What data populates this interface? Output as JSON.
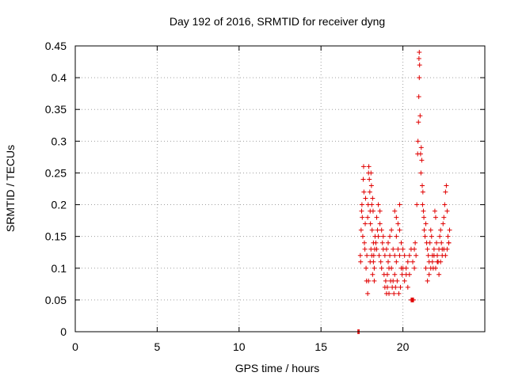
{
  "chart_data": {
    "type": "scatter",
    "title": "Day 192 of 2016, SRMTID for receiver dyng",
    "xlabel": "GPS time / hours",
    "ylabel": "SRMTID / TECUs",
    "xlim": [
      0,
      25
    ],
    "ylim": [
      0,
      0.45
    ],
    "xticks": [
      0,
      5,
      10,
      15,
      20
    ],
    "xtick_labels": [
      "0",
      "5",
      "10",
      "15",
      "20"
    ],
    "yticks": [
      0,
      0.05,
      0.1,
      0.15,
      0.2,
      0.25,
      0.3,
      0.35,
      0.4,
      0.45
    ],
    "ytick_labels": [
      "0",
      "0.05",
      "0.1",
      "0.15",
      "0.2",
      "0.25",
      "0.3",
      "0.35",
      "0.4",
      "0.45"
    ],
    "grid": true,
    "marker": "plus",
    "color": "#e00000",
    "series": [
      {
        "name": "SRMTID",
        "points": [
          [
            17.25,
            0.0
          ],
          [
            17.3,
            0.0
          ],
          [
            17.33,
            0.0
          ],
          [
            17.4,
            0.12
          ],
          [
            17.42,
            0.11
          ],
          [
            17.45,
            0.16
          ],
          [
            17.48,
            0.19
          ],
          [
            17.5,
            0.2
          ],
          [
            17.52,
            0.18
          ],
          [
            17.55,
            0.15
          ],
          [
            17.58,
            0.24
          ],
          [
            17.6,
            0.26
          ],
          [
            17.62,
            0.22
          ],
          [
            17.65,
            0.14
          ],
          [
            17.68,
            0.13
          ],
          [
            17.7,
            0.17
          ],
          [
            17.72,
            0.21
          ],
          [
            17.75,
            0.1
          ],
          [
            17.78,
            0.08
          ],
          [
            17.8,
            0.12
          ],
          [
            17.85,
            0.18
          ],
          [
            17.88,
            0.2
          ],
          [
            17.9,
            0.25
          ],
          [
            17.92,
            0.26
          ],
          [
            17.95,
            0.24
          ],
          [
            17.98,
            0.22
          ],
          [
            18.0,
            0.19
          ],
          [
            18.02,
            0.17
          ],
          [
            18.05,
            0.25
          ],
          [
            18.08,
            0.23
          ],
          [
            18.1,
            0.2
          ],
          [
            18.12,
            0.16
          ],
          [
            18.15,
            0.21
          ],
          [
            18.18,
            0.19
          ],
          [
            18.2,
            0.14
          ],
          [
            18.22,
            0.12
          ],
          [
            18.25,
            0.1
          ],
          [
            18.28,
            0.13
          ],
          [
            18.3,
            0.15
          ],
          [
            17.85,
            0.06
          ],
          [
            17.9,
            0.08
          ],
          [
            18.0,
            0.11
          ],
          [
            18.05,
            0.13
          ],
          [
            18.1,
            0.12
          ],
          [
            18.15,
            0.09
          ],
          [
            18.2,
            0.11
          ],
          [
            18.25,
            0.08
          ],
          [
            18.35,
            0.14
          ],
          [
            18.4,
            0.13
          ],
          [
            18.45,
            0.16
          ],
          [
            18.5,
            0.15
          ],
          [
            18.55,
            0.12
          ],
          [
            18.6,
            0.17
          ],
          [
            18.65,
            0.11
          ],
          [
            18.7,
            0.1
          ],
          [
            18.75,
            0.14
          ],
          [
            18.8,
            0.13
          ],
          [
            18.85,
            0.09
          ],
          [
            18.9,
            0.07
          ],
          [
            18.95,
            0.08
          ],
          [
            19.0,
            0.06
          ],
          [
            19.05,
            0.09
          ],
          [
            19.1,
            0.11
          ],
          [
            19.15,
            0.1
          ],
          [
            18.4,
            0.18
          ],
          [
            18.5,
            0.2
          ],
          [
            18.6,
            0.19
          ],
          [
            18.7,
            0.16
          ],
          [
            18.8,
            0.15
          ],
          [
            18.9,
            0.12
          ],
          [
            19.0,
            0.13
          ],
          [
            19.1,
            0.14
          ],
          [
            19.2,
            0.12
          ],
          [
            19.3,
            0.1
          ],
          [
            19.4,
            0.08
          ],
          [
            19.5,
            0.09
          ],
          [
            19.6,
            0.11
          ],
          [
            19.7,
            0.13
          ],
          [
            19.8,
            0.12
          ],
          [
            19.9,
            0.1
          ],
          [
            19.05,
            0.07
          ],
          [
            19.15,
            0.06
          ],
          [
            19.25,
            0.08
          ],
          [
            19.35,
            0.07
          ],
          [
            19.45,
            0.06
          ],
          [
            19.55,
            0.07
          ],
          [
            19.65,
            0.08
          ],
          [
            19.75,
            0.06
          ],
          [
            19.85,
            0.07
          ],
          [
            19.95,
            0.09
          ],
          [
            19.2,
            0.15
          ],
          [
            19.3,
            0.16
          ],
          [
            19.4,
            0.13
          ],
          [
            19.5,
            0.12
          ],
          [
            19.6,
            0.15
          ],
          [
            19.7,
            0.17
          ],
          [
            19.8,
            0.16
          ],
          [
            19.9,
            0.14
          ],
          [
            20.0,
            0.13
          ],
          [
            20.1,
            0.12
          ],
          [
            20.2,
            0.1
          ],
          [
            20.3,
            0.11
          ],
          [
            20.4,
            0.12
          ],
          [
            20.5,
            0.13
          ],
          [
            20.6,
            0.11
          ],
          [
            20.7,
            0.1
          ],
          [
            19.5,
            0.19
          ],
          [
            19.6,
            0.18
          ],
          [
            19.8,
            0.2
          ],
          [
            20.0,
            0.1
          ],
          [
            20.1,
            0.08
          ],
          [
            20.2,
            0.09
          ],
          [
            20.3,
            0.07
          ],
          [
            20.4,
            0.09
          ],
          [
            20.5,
            0.05
          ],
          [
            20.55,
            0.05
          ],
          [
            20.6,
            0.05
          ],
          [
            20.65,
            0.05
          ],
          [
            20.7,
            0.13
          ],
          [
            20.75,
            0.14
          ],
          [
            20.8,
            0.12
          ],
          [
            20.85,
            0.2
          ],
          [
            20.9,
            0.28
          ],
          [
            20.92,
            0.3
          ],
          [
            20.95,
            0.33
          ],
          [
            20.97,
            0.37
          ],
          [
            21.0,
            0.4
          ],
          [
            21.02,
            0.42
          ],
          [
            21.0,
            0.44
          ],
          [
            20.98,
            0.43
          ],
          [
            21.05,
            0.34
          ],
          [
            21.08,
            0.28
          ],
          [
            21.1,
            0.25
          ],
          [
            21.12,
            0.29
          ],
          [
            21.15,
            0.27
          ],
          [
            21.18,
            0.23
          ],
          [
            21.2,
            0.2
          ],
          [
            21.22,
            0.22
          ],
          [
            21.25,
            0.19
          ],
          [
            21.28,
            0.18
          ],
          [
            21.3,
            0.16
          ],
          [
            21.35,
            0.15
          ],
          [
            21.4,
            0.17
          ],
          [
            21.45,
            0.14
          ],
          [
            21.5,
            0.13
          ],
          [
            21.55,
            0.12
          ],
          [
            21.6,
            0.11
          ],
          [
            21.65,
            0.14
          ],
          [
            21.7,
            0.16
          ],
          [
            21.75,
            0.15
          ],
          [
            21.8,
            0.12
          ],
          [
            21.85,
            0.1
          ],
          [
            21.9,
            0.13
          ],
          [
            21.95,
            0.19
          ],
          [
            22.0,
            0.18
          ],
          [
            22.05,
            0.14
          ],
          [
            22.1,
            0.12
          ],
          [
            22.15,
            0.11
          ],
          [
            22.2,
            0.13
          ],
          [
            22.25,
            0.15
          ],
          [
            22.3,
            0.16
          ],
          [
            22.35,
            0.14
          ],
          [
            22.4,
            0.13
          ],
          [
            22.45,
            0.17
          ],
          [
            22.5,
            0.18
          ],
          [
            22.55,
            0.2
          ],
          [
            22.6,
            0.22
          ],
          [
            22.65,
            0.23
          ],
          [
            22.7,
            0.19
          ],
          [
            22.75,
            0.15
          ],
          [
            22.8,
            0.14
          ],
          [
            22.85,
            0.16
          ],
          [
            21.4,
            0.1
          ],
          [
            21.5,
            0.08
          ],
          [
            21.6,
            0.09
          ],
          [
            21.7,
            0.1
          ],
          [
            21.8,
            0.11
          ],
          [
            21.9,
            0.12
          ],
          [
            22.0,
            0.1
          ],
          [
            22.1,
            0.11
          ],
          [
            22.2,
            0.09
          ],
          [
            22.3,
            0.11
          ],
          [
            22.4,
            0.12
          ],
          [
            22.5,
            0.13
          ],
          [
            22.6,
            0.12
          ],
          [
            22.7,
            0.13
          ],
          [
            22.8,
            0.14
          ]
        ]
      }
    ]
  }
}
